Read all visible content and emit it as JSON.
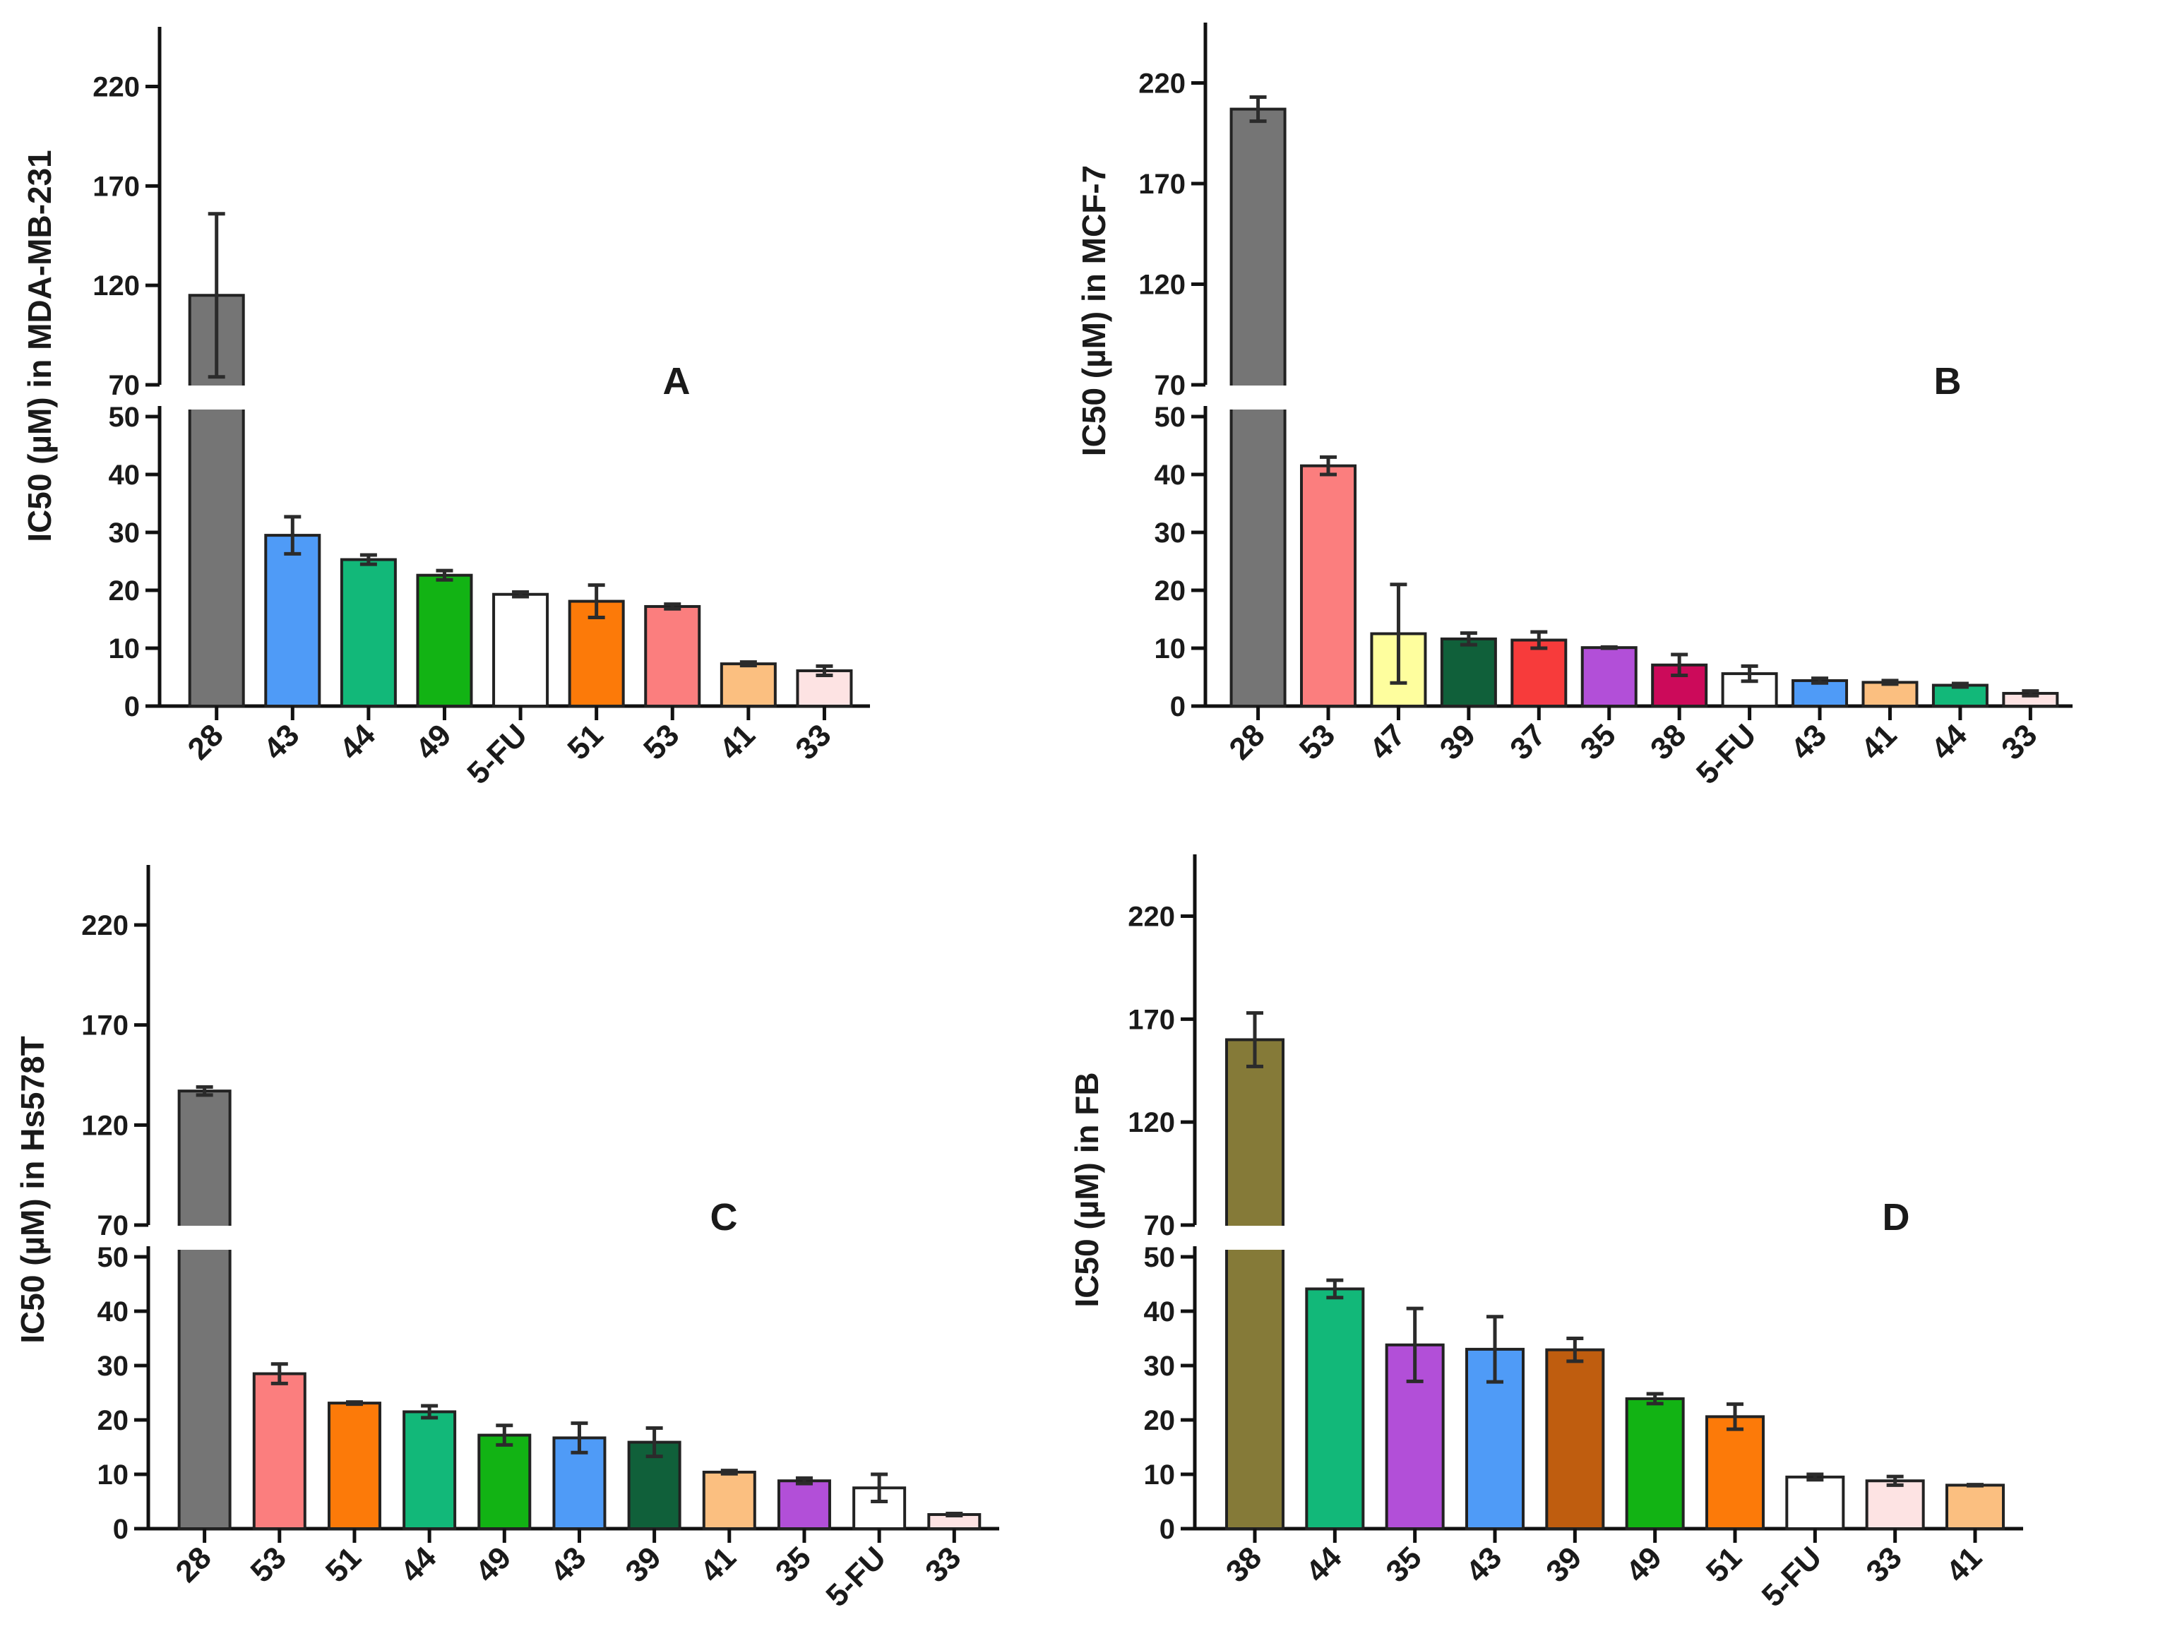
{
  "chart_data": [
    {
      "type": "bar",
      "panel": "A",
      "ylabel": "IC50 (µM) in MDA-MB-231",
      "y_axis": {
        "lower_range": [
          0,
          50
        ],
        "lower_ticks": [
          "0",
          "10",
          "20",
          "30",
          "40",
          "50"
        ],
        "upper_range": [
          70,
          250
        ],
        "upper_ticks": [
          "70",
          "120",
          "170",
          "220"
        ]
      },
      "categories": [
        "28",
        "43",
        "44",
        "49",
        "5-FU",
        "51",
        "53",
        "41",
        "33"
      ],
      "values": [
        115,
        29.5,
        25.3,
        22.6,
        19.3,
        18.1,
        17.2,
        7.3,
        6.1
      ],
      "errors": [
        41,
        3.2,
        0.8,
        0.8,
        0.4,
        2.8,
        0.4,
        0.3,
        0.8
      ],
      "colors": [
        "#757575",
        "#4f9bf7",
        "#12b879",
        "#12b314",
        "#ffffff",
        "#fc7a09",
        "#fb7e7e",
        "#fbbf80",
        "#fde3e3"
      ]
    },
    {
      "type": "bar",
      "panel": "B",
      "ylabel": "IC50 (µM) in MCF-7",
      "y_axis": {
        "lower_range": [
          0,
          50
        ],
        "lower_ticks": [
          "0",
          "10",
          "20",
          "30",
          "40",
          "50"
        ],
        "upper_range": [
          70,
          250
        ],
        "upper_ticks": [
          "70",
          "120",
          "170",
          "220"
        ]
      },
      "categories": [
        "28",
        "53",
        "47",
        "39",
        "37",
        "35",
        "38",
        "5-FU",
        "43",
        "41",
        "44",
        "33"
      ],
      "values": [
        207,
        41.5,
        12.5,
        11.6,
        11.4,
        10.1,
        7.1,
        5.6,
        4.4,
        4.1,
        3.6,
        2.2
      ],
      "errors": [
        6,
        1.5,
        8.5,
        1.0,
        1.4,
        0.1,
        1.8,
        1.3,
        0.4,
        0.3,
        0.3,
        0.4
      ],
      "colors": [
        "#757575",
        "#fb7e7e",
        "#fefe9e",
        "#10603a",
        "#f73b3b",
        "#b24fd8",
        "#cc0a5a",
        "#ffffff",
        "#4f9bf7",
        "#fbbf80",
        "#12b879",
        "#fde3e3"
      ]
    },
    {
      "type": "bar",
      "panel": "C",
      "ylabel": "IC50 (µM) in Hs578T",
      "y_axis": {
        "lower_range": [
          0,
          50
        ],
        "lower_ticks": [
          "0",
          "10",
          "20",
          "30",
          "40",
          "50"
        ],
        "upper_range": [
          70,
          250
        ],
        "upper_ticks": [
          "70",
          "120",
          "170",
          "220"
        ]
      },
      "categories": [
        "28",
        "53",
        "51",
        "44",
        "49",
        "43",
        "39",
        "41",
        "35",
        "5-FU",
        "33"
      ],
      "values": [
        137,
        28.5,
        23.1,
        21.5,
        17.2,
        16.7,
        15.9,
        10.4,
        8.8,
        7.5,
        2.6
      ],
      "errors": [
        2,
        1.8,
        0.2,
        1.1,
        1.8,
        2.7,
        2.6,
        0.3,
        0.5,
        2.5,
        0.2
      ],
      "colors": [
        "#757575",
        "#fb7e7e",
        "#fc7a09",
        "#12b879",
        "#12b314",
        "#4f9bf7",
        "#10603a",
        "#fbbf80",
        "#b24fd8",
        "#ffffff",
        "#fde3e3"
      ]
    },
    {
      "type": "bar",
      "panel": "D",
      "ylabel": "IC50 (µM) in FB",
      "y_axis": {
        "lower_range": [
          0,
          50
        ],
        "lower_ticks": [
          "0",
          "10",
          "20",
          "30",
          "40",
          "50"
        ],
        "upper_range": [
          70,
          250
        ],
        "upper_ticks": [
          "70",
          "120",
          "170",
          "220"
        ]
      },
      "categories": [
        "38",
        "44",
        "35",
        "43",
        "39",
        "49",
        "51",
        "5-FU",
        "33",
        "41"
      ],
      "values": [
        160,
        44.1,
        33.8,
        33.0,
        32.9,
        23.9,
        20.6,
        9.5,
        8.8,
        8.0
      ],
      "errors": [
        13,
        1.6,
        6.7,
        6.0,
        2.1,
        0.9,
        2.3,
        0.5,
        0.8,
        0.1
      ],
      "colors": [
        "#857a38",
        "#12b879",
        "#b24fd8",
        "#4f9bf7",
        "#bf5d0f",
        "#12b314",
        "#fc7a09",
        "#ffffff",
        "#fde3e3",
        "#fbbf80"
      ]
    }
  ]
}
